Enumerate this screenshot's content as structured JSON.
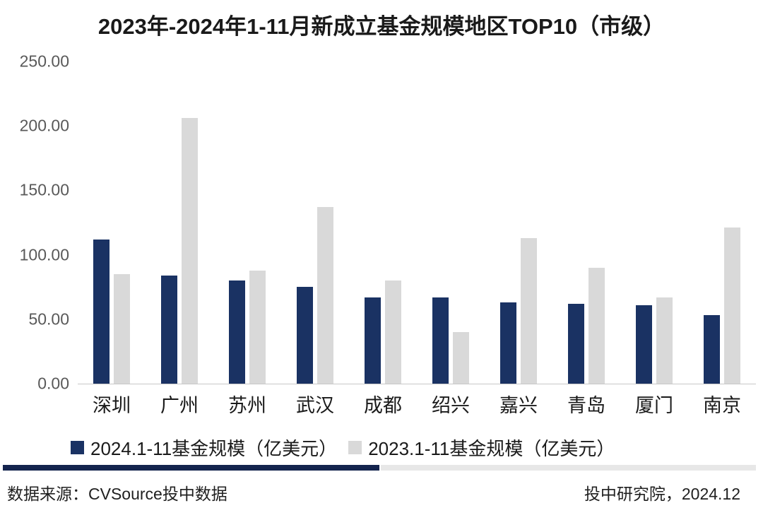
{
  "title": "2023年-2024年1-11月新成立基金规模地区TOP10（市级）",
  "chart_data": {
    "type": "bar",
    "categories": [
      "深圳",
      "广州",
      "苏州",
      "武汉",
      "成都",
      "绍兴",
      "嘉兴",
      "青岛",
      "厦门",
      "南京"
    ],
    "series": [
      {
        "name": "2024.1-11基金规模（亿美元）",
        "color": "#1a3263",
        "values": [
          112,
          84,
          80,
          75,
          67,
          67,
          63,
          62,
          61,
          53
        ]
      },
      {
        "name": "2023.1-11基金规模（亿美元）",
        "color": "#d9d9d9",
        "values": [
          85,
          206,
          88,
          137,
          80,
          40,
          113,
          90,
          67,
          121
        ]
      }
    ],
    "title": "2023年-2024年1-11月新成立基金规模地区TOP10（市级）",
    "xlabel": "",
    "ylabel": "",
    "ylim": [
      0,
      250
    ],
    "yticks": [
      "250.00",
      "200.00",
      "150.00",
      "100.00",
      "50.00",
      "0.00"
    ],
    "grid": false,
    "legend_position": "bottom"
  },
  "footer": {
    "source": "数据来源：CVSource投中数据",
    "credit": "投中研究院，2024.12"
  },
  "colors": {
    "axis_line": "#c8c8c8",
    "tick_text": "#595959",
    "divider_left": "#14244e",
    "divider_right": "#e7e7e7"
  }
}
